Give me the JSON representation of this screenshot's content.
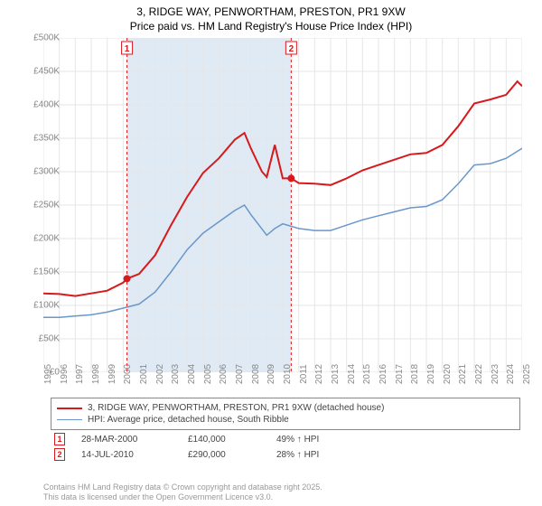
{
  "title_line1": "3, RIDGE WAY, PENWORTHAM, PRESTON, PR1 9XW",
  "title_line2": "Price paid vs. HM Land Registry's House Price Index (HPI)",
  "chart": {
    "type": "line",
    "background_color": "#ffffff",
    "grid_color": "#e6e6e6",
    "shade_color": "#dfeaf4",
    "ylim": [
      0,
      500000
    ],
    "ytick_step": 50000,
    "yticks": [
      "£0",
      "£50K",
      "£100K",
      "£150K",
      "£200K",
      "£250K",
      "£300K",
      "£350K",
      "£400K",
      "£450K",
      "£500K"
    ],
    "xlim": [
      1995,
      2025
    ],
    "xticks": [
      1995,
      1996,
      1997,
      1998,
      1999,
      2000,
      2001,
      2002,
      2003,
      2004,
      2005,
      2006,
      2007,
      2008,
      2009,
      2010,
      2011,
      2012,
      2013,
      2014,
      2015,
      2016,
      2017,
      2018,
      2019,
      2020,
      2021,
      2022,
      2023,
      2024,
      2025
    ],
    "shade_ranges": [
      [
        2000.24,
        2010.53
      ]
    ],
    "label_fontsize": 10,
    "label_color": "#888888",
    "series": [
      {
        "name": "price_paid",
        "color": "#d8191c",
        "line_width": 2,
        "data": [
          [
            1995,
            118000
          ],
          [
            1996,
            117000
          ],
          [
            1997,
            114000
          ],
          [
            1998,
            118000
          ],
          [
            1999,
            122000
          ],
          [
            2000,
            134000
          ],
          [
            2000.24,
            140000
          ],
          [
            2001,
            147000
          ],
          [
            2002,
            175000
          ],
          [
            2003,
            220000
          ],
          [
            2004,
            262000
          ],
          [
            2005,
            298000
          ],
          [
            2006,
            320000
          ],
          [
            2007,
            348000
          ],
          [
            2007.6,
            358000
          ],
          [
            2008,
            335000
          ],
          [
            2008.7,
            300000
          ],
          [
            2009,
            292000
          ],
          [
            2009.5,
            340000
          ],
          [
            2010,
            290000
          ],
          [
            2010.53,
            290000
          ],
          [
            2011,
            283000
          ],
          [
            2012,
            282000
          ],
          [
            2013,
            280000
          ],
          [
            2014,
            290000
          ],
          [
            2015,
            302000
          ],
          [
            2016,
            310000
          ],
          [
            2017,
            318000
          ],
          [
            2018,
            326000
          ],
          [
            2019,
            328000
          ],
          [
            2020,
            340000
          ],
          [
            2021,
            368000
          ],
          [
            2022,
            402000
          ],
          [
            2023,
            408000
          ],
          [
            2024,
            415000
          ],
          [
            2024.7,
            435000
          ],
          [
            2025,
            428000
          ]
        ]
      },
      {
        "name": "hpi",
        "color": "#6a97c9",
        "line_width": 1.5,
        "data": [
          [
            1995,
            82000
          ],
          [
            1996,
            82000
          ],
          [
            1997,
            84000
          ],
          [
            1998,
            86000
          ],
          [
            1999,
            90000
          ],
          [
            2000,
            96000
          ],
          [
            2001,
            102000
          ],
          [
            2002,
            120000
          ],
          [
            2003,
            150000
          ],
          [
            2004,
            183000
          ],
          [
            2005,
            208000
          ],
          [
            2006,
            225000
          ],
          [
            2007,
            242000
          ],
          [
            2007.6,
            250000
          ],
          [
            2008,
            236000
          ],
          [
            2009,
            205000
          ],
          [
            2009.5,
            215000
          ],
          [
            2010,
            222000
          ],
          [
            2011,
            215000
          ],
          [
            2012,
            212000
          ],
          [
            2013,
            212000
          ],
          [
            2014,
            220000
          ],
          [
            2015,
            228000
          ],
          [
            2016,
            234000
          ],
          [
            2017,
            240000
          ],
          [
            2018,
            246000
          ],
          [
            2019,
            248000
          ],
          [
            2020,
            258000
          ],
          [
            2021,
            282000
          ],
          [
            2022,
            310000
          ],
          [
            2023,
            312000
          ],
          [
            2024,
            320000
          ],
          [
            2025,
            335000
          ]
        ]
      }
    ],
    "sale_markers": [
      {
        "label": "1",
        "x": 2000.24,
        "y": 140000,
        "date": "28-MAR-2000",
        "price": "£140,000",
        "hpi_pct": "49%",
        "hpi_dir": "↑"
      },
      {
        "label": "2",
        "x": 2010.53,
        "y": 290000,
        "date": "14-JUL-2010",
        "price": "£290,000",
        "hpi_pct": "28%",
        "hpi_dir": "↑"
      }
    ],
    "marker_outline": "#d8191c",
    "marker_fill": "#ffffff",
    "point_fill": "#d8191c"
  },
  "legend": {
    "series1_label": "3, RIDGE WAY, PENWORTHAM, PRESTON, PR1 9XW (detached house)",
    "series2_label": "HPI: Average price, detached house, South Ribble",
    "hpi_word": "HPI"
  },
  "footer_line1": "Contains HM Land Registry data © Crown copyright and database right 2025.",
  "footer_line2": "This data is licensed under the Open Government Licence v3.0."
}
